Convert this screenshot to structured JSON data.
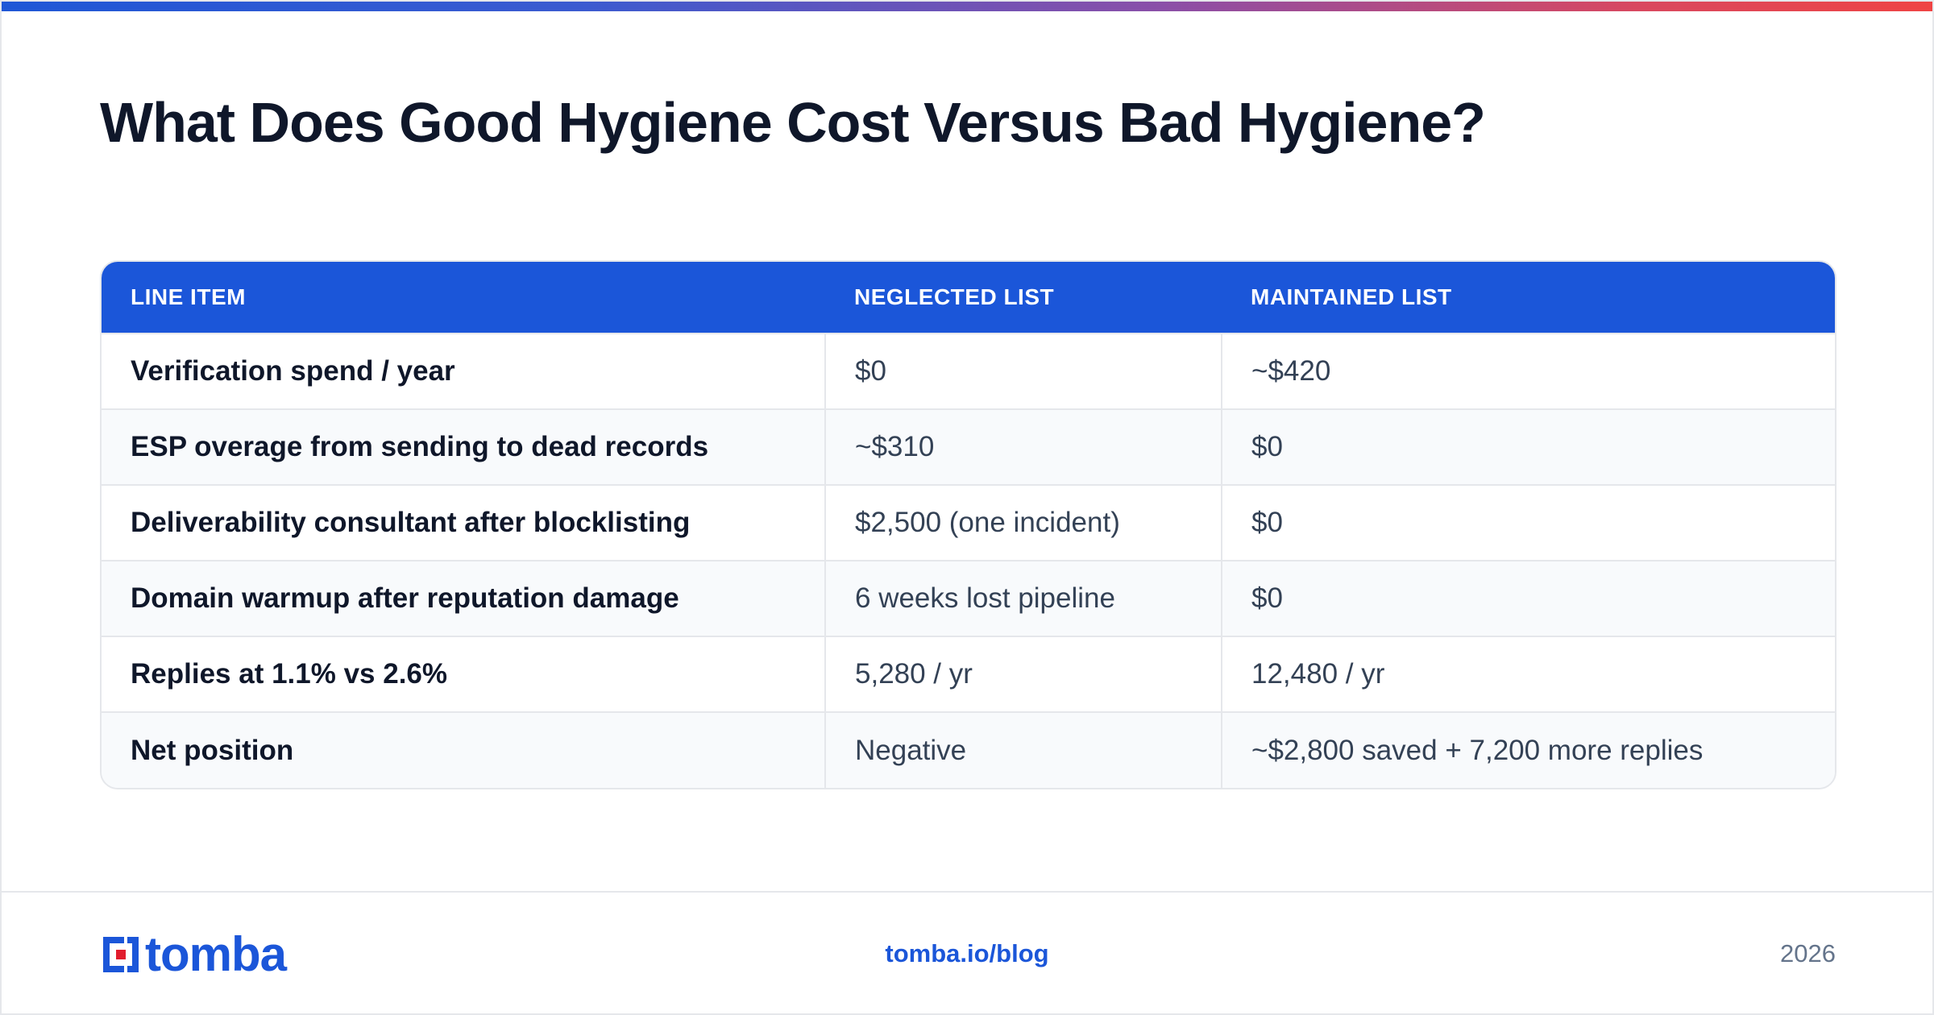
{
  "title": "What Does Good Hygiene Cost Versus Bad Hygiene?",
  "table": {
    "headers": [
      "LINE ITEM",
      "NEGLECTED LIST",
      "MAINTAINED LIST"
    ],
    "rows": [
      [
        "Verification spend / year",
        "$0",
        "~$420"
      ],
      [
        "ESP overage from sending to dead records",
        "~$310",
        "$0"
      ],
      [
        "Deliverability consultant after blocklisting",
        "$2,500 (one incident)",
        "$0"
      ],
      [
        "Domain warmup after reputation damage",
        "6 weeks lost pipeline",
        "$0"
      ],
      [
        "Replies at 1.1% vs 2.6%",
        "5,280 / yr",
        "12,480 / yr"
      ],
      [
        "Net position",
        "Negative",
        "~$2,800 saved + 7,200 more replies"
      ]
    ]
  },
  "footer": {
    "logo_text": "tomba",
    "link": "tomba.io/blog",
    "year": "2026"
  },
  "colors": {
    "accent": "#1b56d9",
    "logo_red": "#e11d2e",
    "title": "#0f172a"
  },
  "icons": {
    "logo": "tomba-logo-icon"
  }
}
